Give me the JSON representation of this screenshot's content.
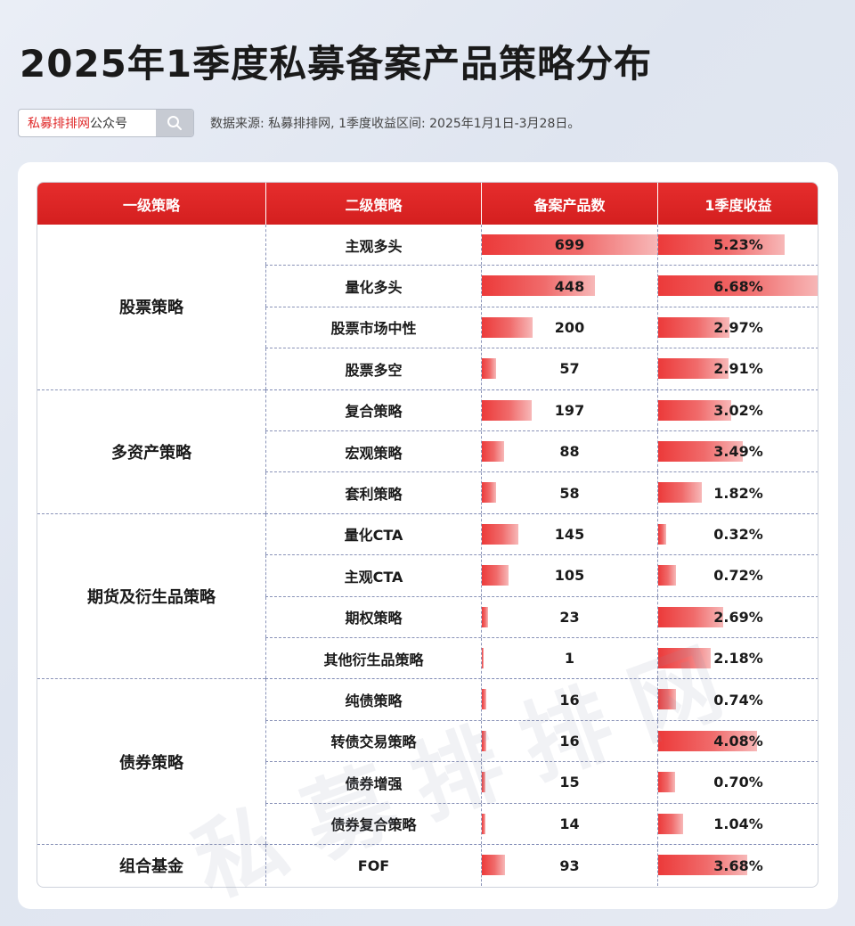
{
  "title": "2025年1季度私募备案产品策略分布",
  "search": {
    "brand": "私募排排网",
    "suffix": "公众号"
  },
  "source_note": "数据来源: 私募排排网, 1季度收益区间: 2025年1月1日-3月28日。",
  "watermark": "私募排排网",
  "table": {
    "headers": [
      "一级策略",
      "二级策略",
      "备案产品数",
      "1季度收益"
    ],
    "groups": [
      {
        "name": "股票策略",
        "rows": [
          {
            "sub": "主观多头",
            "count": 699,
            "ret": "5.23%"
          },
          {
            "sub": "量化多头",
            "count": 448,
            "ret": "6.68%"
          },
          {
            "sub": "股票市场中性",
            "count": 200,
            "ret": "2.97%"
          },
          {
            "sub": "股票多空",
            "count": 57,
            "ret": "2.91%"
          }
        ]
      },
      {
        "name": "多资产策略",
        "rows": [
          {
            "sub": "复合策略",
            "count": 197,
            "ret": "3.02%"
          },
          {
            "sub": "宏观策略",
            "count": 88,
            "ret": "3.49%"
          },
          {
            "sub": "套利策略",
            "count": 58,
            "ret": "1.82%"
          }
        ]
      },
      {
        "name": "期货及衍生品策略",
        "rows": [
          {
            "sub": "量化CTA",
            "count": 145,
            "ret": "0.32%"
          },
          {
            "sub": "主观CTA",
            "count": 105,
            "ret": "0.72%"
          },
          {
            "sub": "期权策略",
            "count": 23,
            "ret": "2.69%"
          },
          {
            "sub": "其他衍生品策略",
            "count": 1,
            "ret": "2.18%"
          }
        ]
      },
      {
        "name": "债券策略",
        "rows": [
          {
            "sub": "纯债策略",
            "count": 16,
            "ret": "0.74%"
          },
          {
            "sub": "转债交易策略",
            "count": 16,
            "ret": "4.08%"
          },
          {
            "sub": "债券增强",
            "count": 15,
            "ret": "0.70%"
          },
          {
            "sub": "债券复合策略",
            "count": 14,
            "ret": "1.04%"
          }
        ]
      },
      {
        "name": "组合基金",
        "rows": [
          {
            "sub": "FOF",
            "count": 93,
            "ret": "3.68%"
          }
        ]
      }
    ]
  },
  "colors": {
    "accent": "#e02a2a",
    "header_bg": "#dc2626"
  },
  "icons": {
    "search_button": "search-icon"
  }
}
